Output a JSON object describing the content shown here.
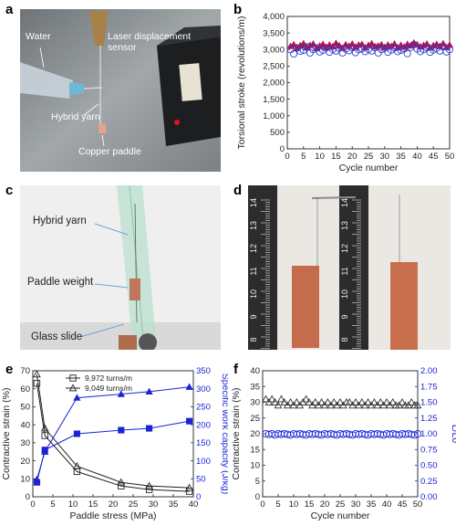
{
  "panels": [
    {
      "letter": "a"
    },
    {
      "letter": "b"
    },
    {
      "letter": "c"
    },
    {
      "letter": "d"
    },
    {
      "letter": "e"
    },
    {
      "letter": "f"
    }
  ],
  "photo_a": {
    "labels": {
      "water": "Water",
      "sensor": "Laser displacement sensor",
      "yarn": "Hybrid yarn",
      "paddle": "Copper paddle"
    },
    "colors": {
      "bg": "#8a8f93",
      "sensor": "#1c1c1e",
      "syringe": "#b9c6cf"
    }
  },
  "photo_c": {
    "labels": {
      "yarn": "Hybrid yarn",
      "weight": "Paddle weight",
      "slide": "Glass slide"
    },
    "colors": {
      "bg": "#e9e9e9",
      "slide": "#b6dccb",
      "arrow": "#6fa3d6"
    }
  },
  "photo_d": {
    "ruler_ticks_left": [
      "14",
      "13",
      "12",
      "11",
      "10",
      "9",
      "8"
    ],
    "ruler_ticks_right": [
      "14",
      "13",
      "12",
      "11",
      "10",
      "9",
      "8"
    ],
    "colors": {
      "bg": "#e7e4df",
      "ruler": "#2a2a2a",
      "copper": "#c46c4c"
    }
  },
  "chart_data": [
    {
      "id": "b",
      "type": "scatter",
      "xlabel": "Cycle number",
      "ylabel": "Torsional stroke (revolutions/m)",
      "xlim": [
        0,
        50
      ],
      "ylim": [
        0,
        4000
      ],
      "xticks": [
        "0",
        "5",
        "10",
        "15",
        "20",
        "25",
        "30",
        "35",
        "40",
        "45",
        "50"
      ],
      "yticks": [
        "0",
        "500",
        "1,000",
        "1,500",
        "2,000",
        "2,500",
        "3,000",
        "3,500",
        "4,000"
      ],
      "grid": false,
      "series": [
        {
          "marker": "triangle",
          "color": "#b3124a",
          "x": [
            1,
            2,
            3,
            4,
            5,
            6,
            7,
            8,
            9,
            10,
            11,
            12,
            13,
            14,
            15,
            16,
            17,
            18,
            19,
            20,
            21,
            22,
            23,
            24,
            25,
            26,
            27,
            28,
            29,
            30,
            31,
            32,
            33,
            34,
            35,
            36,
            37,
            38,
            39,
            40,
            41,
            42,
            43,
            44,
            45,
            46,
            47,
            48,
            49,
            50
          ],
          "values": [
            3100,
            3150,
            3050,
            3120,
            3180,
            3060,
            3130,
            3170,
            3040,
            3110,
            3160,
            3070,
            3140,
            3090,
            3190,
            3120,
            3050,
            3150,
            3100,
            3170,
            3080,
            3140,
            3160,
            3060,
            3130,
            3180,
            3090,
            3110,
            3150,
            3070,
            3140,
            3100,
            3170,
            3060,
            3130,
            3080,
            3160,
            3120,
            3200,
            3150,
            3090,
            3130,
            3170,
            3060,
            3120,
            3160,
            3100,
            3180,
            3070,
            3140
          ]
        },
        {
          "marker": "circle",
          "color": "#2d3fd1",
          "x": [
            1,
            2,
            3,
            4,
            5,
            6,
            7,
            8,
            9,
            10,
            11,
            12,
            13,
            14,
            15,
            16,
            17,
            18,
            19,
            20,
            21,
            22,
            23,
            24,
            25,
            26,
            27,
            28,
            29,
            30,
            31,
            32,
            33,
            34,
            35,
            36,
            37,
            38,
            39,
            40,
            41,
            42,
            43,
            44,
            45,
            46,
            47,
            48,
            49,
            50
          ],
          "values": [
            3000,
            2870,
            3050,
            2950,
            2980,
            3080,
            2900,
            3000,
            3050,
            2930,
            2980,
            3050,
            2920,
            3010,
            2960,
            3040,
            2900,
            3020,
            2970,
            3050,
            2910,
            3000,
            3030,
            2940,
            3010,
            2960,
            3060,
            2900,
            3000,
            3040,
            2920,
            2990,
            3050,
            2940,
            2980,
            3020,
            2880,
            3070,
            3150,
            3020,
            2940,
            3000,
            3060,
            2920,
            2990,
            3040,
            2960,
            3080,
            2930,
            3000
          ]
        }
      ]
    },
    {
      "id": "e",
      "type": "line",
      "xlabel": "Paddle stress (MPa)",
      "ylabel": "Contractive strain (%)",
      "y2label": "Specific work capacity (J/kg)",
      "xlim": [
        0,
        40
      ],
      "ylim": [
        0,
        70
      ],
      "y2lim": [
        0,
        350
      ],
      "xticks": [
        "0",
        "5",
        "10",
        "15",
        "20",
        "25",
        "30",
        "35",
        "40"
      ],
      "yticks": [
        "0",
        "10",
        "20",
        "30",
        "40",
        "50",
        "60",
        "70"
      ],
      "y2ticks": [
        "0",
        "50",
        "100",
        "150",
        "200",
        "250",
        "300",
        "350"
      ],
      "legend": "top-center",
      "series": [
        {
          "name": "9,972 turns/m",
          "axis": "left",
          "marker": "square-open",
          "color": "#222222",
          "x": [
            1,
            3,
            11,
            22,
            29,
            39
          ],
          "values": [
            63,
            34,
            14,
            6,
            4,
            3
          ]
        },
        {
          "name": "9,049 turns/m",
          "axis": "left",
          "marker": "triangle-open",
          "color": "#222222",
          "x": [
            1,
            3,
            11,
            22,
            29,
            39
          ],
          "values": [
            68,
            38,
            17,
            8,
            6,
            5
          ]
        },
        {
          "axis": "right",
          "marker": "square-filled",
          "color": "#1a23d6",
          "x": [
            1,
            3,
            11,
            22,
            29,
            39
          ],
          "values": [
            40,
            130,
            175,
            185,
            190,
            210
          ]
        },
        {
          "axis": "right",
          "marker": "triangle-filled",
          "color": "#1a23d6",
          "x": [
            1,
            3,
            11,
            22,
            29,
            39
          ],
          "values": [
            48,
            125,
            275,
            285,
            292,
            305
          ]
        }
      ]
    },
    {
      "id": "f",
      "type": "scatter",
      "xlabel": "Cycle number",
      "ylabel": "Contractive strain (%)",
      "y2label": "L/L0",
      "xlim": [
        0,
        50
      ],
      "ylim": [
        0,
        40
      ],
      "y2lim": [
        0,
        2
      ],
      "xticks": [
        "0",
        "5",
        "10",
        "15",
        "20",
        "25",
        "30",
        "35",
        "40",
        "45",
        "50"
      ],
      "yticks": [
        "0",
        "5",
        "10",
        "15",
        "20",
        "25",
        "30",
        "35",
        "40"
      ],
      "y2ticks": [
        "0.00",
        "0.25",
        "0.50",
        "0.75",
        "1.00",
        "1.25",
        "1.50",
        "1.75",
        "2.00"
      ],
      "series": [
        {
          "axis": "left",
          "marker": "triangle-open",
          "color": "#333333",
          "x": [
            1,
            2,
            3,
            4,
            5,
            6,
            7,
            8,
            9,
            10,
            11,
            12,
            13,
            14,
            15,
            16,
            17,
            18,
            19,
            20,
            21,
            22,
            23,
            24,
            25,
            26,
            27,
            28,
            29,
            30,
            31,
            32,
            33,
            34,
            35,
            36,
            37,
            38,
            39,
            40,
            41,
            42,
            43,
            44,
            45,
            46,
            47,
            48,
            49,
            50
          ],
          "values": [
            31,
            30,
            31,
            30,
            29,
            31,
            30,
            29,
            30,
            29,
            30,
            29,
            30,
            31,
            30,
            29,
            30,
            29,
            30,
            29,
            30,
            29,
            30,
            29,
            30,
            29,
            30,
            30,
            29,
            30,
            29,
            30,
            29,
            30,
            29,
            30,
            29,
            30,
            29,
            30,
            29,
            30,
            29,
            29,
            30,
            29,
            29,
            30,
            29,
            29
          ]
        },
        {
          "axis": "right",
          "marker": "circle-open",
          "color": "#1a23d6",
          "x": [
            1,
            2,
            3,
            4,
            5,
            6,
            7,
            8,
            9,
            10,
            11,
            12,
            13,
            14,
            15,
            16,
            17,
            18,
            19,
            20,
            21,
            22,
            23,
            24,
            25,
            26,
            27,
            28,
            29,
            30,
            31,
            32,
            33,
            34,
            35,
            36,
            37,
            38,
            39,
            40,
            41,
            42,
            43,
            44,
            45,
            46,
            47,
            48,
            49,
            50
          ],
          "values": [
            1.0,
            0.99,
            1.0,
            0.98,
            1.0,
            0.99,
            1.0,
            0.99,
            0.98,
            1.0,
            0.99,
            1.0,
            0.99,
            0.98,
            1.0,
            0.99,
            1.0,
            0.99,
            0.98,
            1.0,
            0.99,
            1.0,
            0.99,
            0.98,
            1.0,
            0.99,
            1.0,
            0.99,
            0.98,
            1.0,
            0.99,
            1.0,
            0.99,
            0.98,
            1.0,
            0.99,
            1.0,
            0.99,
            0.98,
            1.0,
            0.99,
            1.0,
            0.99,
            0.98,
            1.0,
            0.99,
            1.0,
            0.99,
            0.98,
            1.0
          ]
        }
      ]
    }
  ]
}
